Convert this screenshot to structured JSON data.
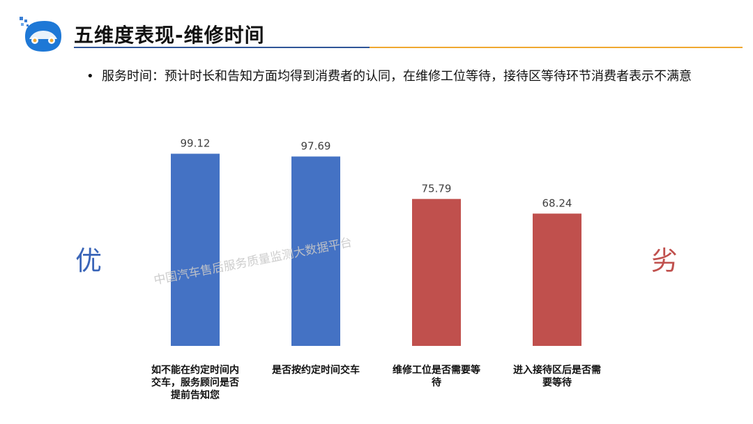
{
  "header": {
    "title": "五维度表现-维修时间"
  },
  "bullet": {
    "dot": "•",
    "text": "服务时间：预计时长和告知方面均得到消费者的认同，在维修工位等待，接待区等待环节消费者表示不满意"
  },
  "sides": {
    "good": "优",
    "bad": "劣"
  },
  "watermark": "中国汽车售后服务质量监测大数据平台",
  "colors": {
    "good": "#4472c4",
    "bad": "#c0504d",
    "brand_blue": "#2f5597",
    "accent_gold": "#f0a830"
  },
  "chart_data": {
    "type": "bar",
    "categories": [
      "如不能在约定时间内交车，服务顾问是否提前告知您",
      "是否按约定时间交车",
      "维修工位是否需要等待",
      "进入接待区后是否需要等待"
    ],
    "values": [
      99.12,
      97.69,
      75.79,
      68.24
    ],
    "value_labels": [
      "99.12",
      "97.69",
      "75.79",
      "68.24"
    ],
    "bar_colors": [
      "#4472c4",
      "#4472c4",
      "#c0504d",
      "#c0504d"
    ],
    "ylim": [
      0,
      100
    ],
    "grid": false,
    "legend": "none"
  }
}
